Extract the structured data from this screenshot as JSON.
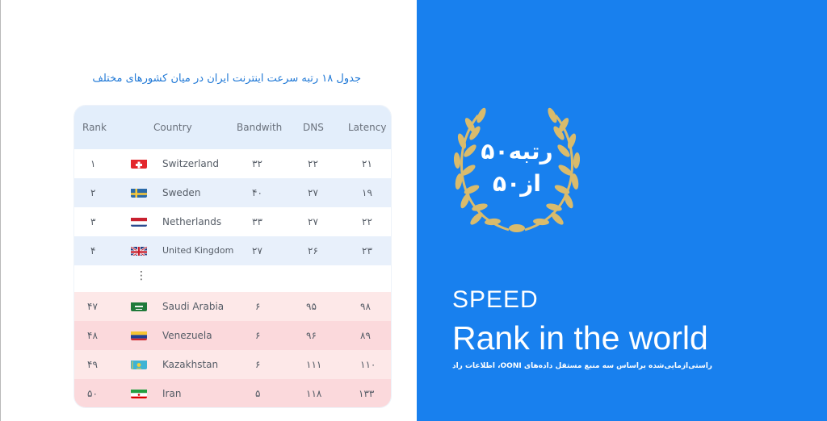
{
  "table": {
    "title": "جدول ۱۸  رتبه سرعت اینترنت ایران در میان کشورهای مختلف",
    "headers": {
      "rank": "Rank",
      "country": "Country",
      "bandwidth": "Bandwith",
      "dns": "DNS",
      "latency": "Latency"
    },
    "ellipsis": "⋮",
    "rows": [
      {
        "rank": "۱",
        "country": "Switzerland",
        "flag": "switzerland-flag",
        "bandwidth": "۳۲",
        "dns": "۲۲",
        "latency": "۲۱"
      },
      {
        "rank": "۲",
        "country": "Sweden",
        "flag": "sweden-flag",
        "bandwidth": "۴۰",
        "dns": "۲۷",
        "latency": "۱۹"
      },
      {
        "rank": "۳",
        "country": "Netherlands",
        "flag": "netherlands-flag",
        "bandwidth": "۳۳",
        "dns": "۲۷",
        "latency": "۲۲"
      },
      {
        "rank": "۴",
        "country": "United Kingdom",
        "flag": "uk-flag",
        "bandwidth": "۲۷",
        "dns": "۲۶",
        "latency": "۲۳"
      },
      {
        "rank": "۴۷",
        "country": "Saudi Arabia",
        "flag": "saudi-arabia-flag",
        "bandwidth": "۶",
        "dns": "۹۵",
        "latency": "۹۸"
      },
      {
        "rank": "۴۸",
        "country": "Venezuela",
        "flag": "venezuela-flag",
        "bandwidth": "۶",
        "dns": "۹۶",
        "latency": "۸۹"
      },
      {
        "rank": "۴۹",
        "country": "Kazakhstan",
        "flag": "kazakhstan-flag",
        "bandwidth": "۶",
        "dns": "۱۱۱",
        "latency": "۱۱۰"
      },
      {
        "rank": "۵۰",
        "country": "Iran",
        "flag": "iran-flag",
        "bandwidth": "۵",
        "dns": "۱۱۸",
        "latency": "۱۳۳"
      }
    ]
  },
  "badge": {
    "line1": "رتبه۵۰",
    "line2": "از۵۰",
    "wreath_icon": "laurel-wreath-icon"
  },
  "hero": {
    "speed_label": "SPEED",
    "headline": "Rank in the world",
    "footnote": "راستی‌آزمایی‌شده براساس سه منبع مستقل داده‌های OONI، اطلاعات رادار کلادفلر و رادار آروان کلاد"
  },
  "colors": {
    "accent_blue": "#1880ee",
    "header_bg": "#e3eefb",
    "row_blue": "#e8f0fb",
    "row_red": "#fde8e8",
    "row_red_dark": "#fbd9dc",
    "title_blue": "#1f78d6",
    "wreath_gold": "#d9bb6c"
  }
}
